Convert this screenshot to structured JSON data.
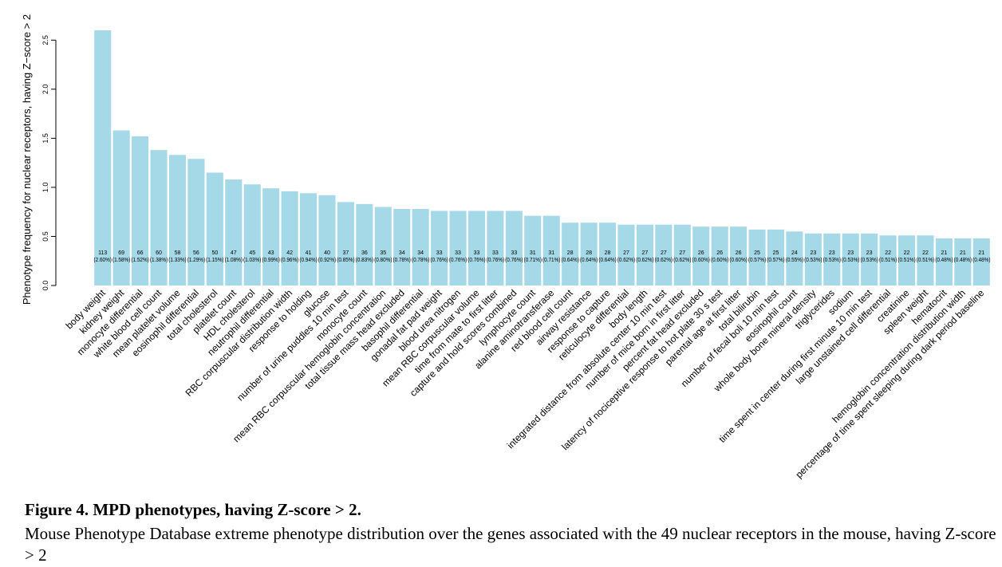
{
  "chart_data": {
    "type": "bar",
    "ylabel": "Phenotype frequency for nuclear receptors, having Z−score > 2",
    "caption_title": "Figure 4. MPD phenotypes, having Z-score > 2.",
    "caption_text": "Mouse Phenotype Database extreme phenotype distribution over the genes associated with the 49 nuclear receptors in the mouse, having Z-score > 2",
    "color": "#a6d9e8",
    "categories": [
      "body weight",
      "kidney  weight",
      "monocyte differential",
      "white blood cell count",
      "mean platelet volume",
      "eosinophil differential",
      "total cholesterol",
      "platelet count",
      "HDL cholesterol",
      "neutrophil differential",
      "RBC corpuscular distribution width",
      "response to holding",
      "glucose",
      "number of urine puddles 10 min test",
      "monocyte count",
      "mean RBC corpuscular hemoglobin concentration",
      "total tissue mass head excluded",
      "basophil differential",
      "gonadal fat pad weight",
      "blood urea nitrogen",
      "mean RBC corpuscular volume",
      "time from mate to first litter",
      "capture and hold scores combined",
      "lymphocyte count",
      "alanine aminotransferase",
      "red blood cell count",
      "airway resistance",
      "response to capture",
      "reticulocyte differential",
      "body length",
      "integrated distance from absolute center 10 min test",
      "number of mice born in first litter",
      "percent fat head excluded",
      "latency of nociceptive response to hot plate  30 s test",
      "parental age at first litter",
      "total bilirubin",
      "number of fecal boli 10 min test",
      "eosinophil count",
      "whole body bone mineral density",
      "triglycerides",
      "sodium",
      "time spent in center during first minute 10 min test",
      "large unstained cell differential",
      "creatinine",
      "spleen weight",
      "hematocrit",
      "hemoglobin concentration distribution width",
      "percentage of time spent sleeping during dark period baseline"
    ],
    "values": [
      2.6,
      1.58,
      1.52,
      1.38,
      1.33,
      1.29,
      1.15,
      1.08,
      1.03,
      0.99,
      0.96,
      0.94,
      0.92,
      0.85,
      0.83,
      0.8,
      0.78,
      0.78,
      0.76,
      0.76,
      0.76,
      0.76,
      0.76,
      0.71,
      0.71,
      0.64,
      0.64,
      0.64,
      0.62,
      0.62,
      0.62,
      0.62,
      0.6,
      0.6,
      0.6,
      0.57,
      0.57,
      0.55,
      0.53,
      0.53,
      0.53,
      0.53,
      0.51,
      0.51,
      0.51,
      0.48,
      0.48,
      0.48
    ],
    "value_labels": [
      "(2.60%)",
      "(1.58%)",
      "(1.52%)",
      "(1.38%)",
      "(1.33%)",
      "(1.29%)",
      "(1.15%)",
      "(1.08%)",
      "(1.03%)",
      "(0.99%)",
      "(0.96%)",
      "(0.94%)",
      "(0.92%)",
      "(0.85%)",
      "(0.83%)",
      "(0.80%)",
      "(0.78%)",
      "(0.78%)",
      "(0.76%)",
      "(0.76%)",
      "(0.76%)",
      "(0.76%)",
      "(0.76%)",
      "(0.71%)",
      "(0.71%)",
      "(0.64%)",
      "(0.64%)",
      "(0.64%)",
      "(0.62%)",
      "(0.62%)",
      "(0.62%)",
      "(0.62%)",
      "(0.60%)",
      "(0.60%)",
      "(0.60%)",
      "(0.57%)",
      "(0.57%)",
      "(0.55%)",
      "(0.53%)",
      "(0.53%)",
      "(0.53%)",
      "(0.53%)",
      "(0.51%)",
      "(0.51%)",
      "(0.51%)",
      "(0.48%)",
      "(0.48%)",
      "(0.48%)"
    ],
    "counts": [
      113,
      69,
      66,
      60,
      58,
      56,
      50,
      47,
      45,
      43,
      42,
      41,
      40,
      37,
      36,
      35,
      34,
      34,
      33,
      33,
      33,
      33,
      33,
      31,
      31,
      28,
      28,
      28,
      27,
      27,
      27,
      27,
      26,
      26,
      26,
      25,
      25,
      24,
      23,
      23,
      23,
      23,
      22,
      22,
      22,
      21,
      21,
      21
    ],
    "ylim": [
      0,
      2.6
    ],
    "yticks": [
      {
        "value": 0,
        "label": "0.0"
      },
      {
        "value": 0.5,
        "label": "0.5"
      },
      {
        "value": 1,
        "label": "1.0"
      },
      {
        "value": 1.5,
        "label": "1.5"
      },
      {
        "value": 2,
        "label": "2.0"
      },
      {
        "value": 2.5,
        "label": "2.5"
      }
    ]
  }
}
